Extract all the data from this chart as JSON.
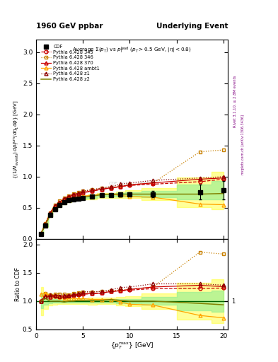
{
  "title_left": "1960 GeV ppbar",
  "title_right": "Underlying Event",
  "plot_title": "Average $\\Sigma(p_T)$ vs $p_T^{\\mathrm{lead}}$ ($p_T > 0.5$ GeV, $|\\eta| < 0.8$)",
  "xlabel": "$\\{p_T^{\\mathrm{max}}\\}$ [GeV]",
  "ylabel": "$\\{(1/N_\\mathrm{events})\\,dp_T^\\mathrm{sum}/d\\eta_1 d\\phi\\}$ [GeV]",
  "ylabel_ratio": "Ratio to CDF",
  "watermark": "CDF_2015_I1388868",
  "rivet_text": "Rivet 3.1.10, ≥ 2.8M events",
  "mcplots_text": "mcplots.cern.ch [arXiv:1306.3436]",
  "cdf_x": [
    0.5,
    1.0,
    1.5,
    2.0,
    2.5,
    3.0,
    3.5,
    4.0,
    4.5,
    5.0,
    6.0,
    7.0,
    8.0,
    9.0,
    10.0,
    12.5,
    17.5,
    20.0
  ],
  "cdf_y": [
    0.08,
    0.22,
    0.38,
    0.48,
    0.54,
    0.59,
    0.62,
    0.64,
    0.65,
    0.66,
    0.68,
    0.7,
    0.7,
    0.71,
    0.72,
    0.72,
    0.75,
    0.78
  ],
  "cdf_yerr": [
    0.01,
    0.015,
    0.015,
    0.015,
    0.015,
    0.015,
    0.015,
    0.015,
    0.015,
    0.015,
    0.02,
    0.02,
    0.02,
    0.025,
    0.03,
    0.05,
    0.12,
    0.15
  ],
  "p345_x": [
    0.5,
    1.0,
    1.5,
    2.0,
    2.5,
    3.0,
    3.5,
    4.0,
    4.5,
    5.0,
    6.0,
    7.0,
    8.0,
    9.0,
    10.0,
    12.5,
    17.5,
    20.0
  ],
  "p345_y": [
    0.08,
    0.24,
    0.41,
    0.52,
    0.58,
    0.63,
    0.67,
    0.7,
    0.72,
    0.74,
    0.77,
    0.8,
    0.82,
    0.84,
    0.86,
    0.88,
    0.92,
    0.96
  ],
  "p346_x": [
    0.5,
    1.0,
    1.5,
    2.0,
    2.5,
    3.0,
    3.5,
    4.0,
    4.5,
    5.0,
    6.0,
    7.0,
    8.0,
    9.0,
    10.0,
    12.5,
    17.5,
    20.0
  ],
  "p346_y": [
    0.08,
    0.25,
    0.42,
    0.54,
    0.61,
    0.66,
    0.69,
    0.73,
    0.75,
    0.77,
    0.79,
    0.82,
    0.83,
    0.85,
    0.87,
    0.9,
    1.4,
    1.43
  ],
  "p370_x": [
    0.5,
    1.0,
    1.5,
    2.0,
    2.5,
    3.0,
    3.5,
    4.0,
    4.5,
    5.0,
    6.0,
    7.0,
    8.0,
    9.0,
    10.0,
    12.5,
    17.5,
    20.0
  ],
  "p370_y": [
    0.08,
    0.24,
    0.41,
    0.53,
    0.59,
    0.64,
    0.68,
    0.71,
    0.73,
    0.75,
    0.77,
    0.8,
    0.82,
    0.84,
    0.87,
    0.9,
    0.96,
    0.98
  ],
  "pambt1_x": [
    0.5,
    1.0,
    1.5,
    2.0,
    2.5,
    3.0,
    3.5,
    4.0,
    4.5,
    5.0,
    6.0,
    7.0,
    8.0,
    9.0,
    10.0,
    12.5,
    17.5,
    20.0
  ],
  "pambt1_y": [
    0.09,
    0.25,
    0.42,
    0.53,
    0.58,
    0.62,
    0.65,
    0.67,
    0.68,
    0.69,
    0.7,
    0.72,
    0.72,
    0.7,
    0.68,
    0.67,
    0.56,
    0.55
  ],
  "pz1_x": [
    0.5,
    1.0,
    1.5,
    2.0,
    2.5,
    3.0,
    3.5,
    4.0,
    4.5,
    5.0,
    6.0,
    7.0,
    8.0,
    9.0,
    10.0,
    12.5,
    17.5,
    20.0
  ],
  "pz1_y": [
    0.08,
    0.24,
    0.42,
    0.53,
    0.59,
    0.65,
    0.68,
    0.72,
    0.74,
    0.77,
    0.79,
    0.82,
    0.84,
    0.88,
    0.9,
    0.94,
    0.98,
    1.0
  ],
  "pz2_x": [
    0.5,
    1.0,
    1.5,
    2.0,
    2.5,
    3.0,
    3.5,
    4.0,
    4.5,
    5.0,
    6.0,
    7.0,
    8.0,
    9.0,
    10.0,
    12.5,
    17.5,
    20.0
  ],
  "pz2_y": [
    0.08,
    0.23,
    0.38,
    0.48,
    0.54,
    0.58,
    0.62,
    0.64,
    0.66,
    0.67,
    0.69,
    0.71,
    0.72,
    0.72,
    0.72,
    0.72,
    0.72,
    0.73
  ],
  "color_cdf": "#000000",
  "color_345": "#c80000",
  "color_346": "#c88000",
  "color_370": "#c80000",
  "color_ambt1": "#ffa500",
  "color_z1": "#8b0000",
  "color_z2": "#808000",
  "ylim_main": [
    0.0,
    3.2
  ],
  "ylim_ratio": [
    0.5,
    2.1
  ],
  "xlim": [
    0.0,
    20.5
  ],
  "yticks_main": [
    0.0,
    0.5,
    1.0,
    1.5,
    2.0,
    2.5,
    3.0
  ],
  "yticks_ratio": [
    0.5,
    1.0,
    1.5,
    2.0
  ],
  "xticks": [
    0,
    5,
    10,
    15,
    20
  ]
}
